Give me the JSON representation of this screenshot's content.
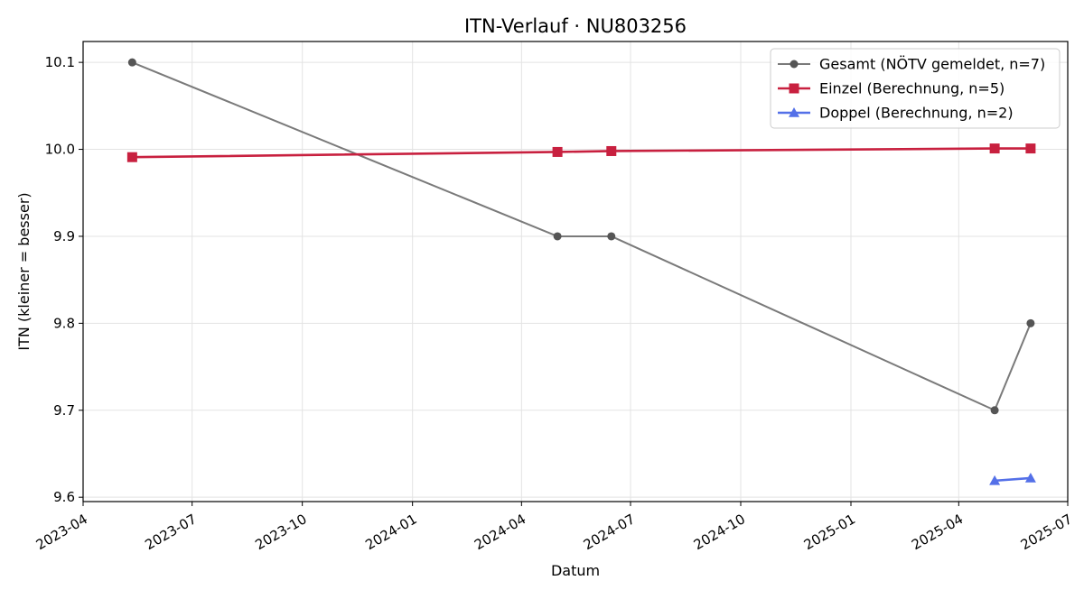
{
  "chart_data": {
    "type": "line",
    "title": "ITN-Verlauf · NU803256",
    "xlabel": "Datum",
    "ylabel": "ITN  (kleiner = besser)",
    "x_axis": {
      "type": "date",
      "range": [
        "2023-04-01",
        "2025-07-01"
      ],
      "ticks": [
        "2023-04-01",
        "2023-07-01",
        "2023-10-01",
        "2024-01-01",
        "2024-04-01",
        "2024-07-01",
        "2024-10-01",
        "2025-01-01",
        "2025-04-01",
        "2025-07-01"
      ],
      "tick_labels": [
        "2023-04",
        "2023-07",
        "2023-10",
        "2024-01",
        "2024-04",
        "2024-07",
        "2024-10",
        "2025-01",
        "2025-04",
        "2025-07"
      ]
    },
    "y_axis": {
      "range": [
        9.595,
        10.124
      ],
      "ticks": [
        9.6,
        9.7,
        9.8,
        9.9,
        10.0,
        10.1
      ],
      "tick_labels": [
        "9.6",
        "9.7",
        "9.8",
        "9.9",
        "10.0",
        "10.1"
      ]
    },
    "grid": true,
    "legend_position": "top-right",
    "series": [
      {
        "name": "Gesamt (NÖTV gemeldet, n=7)",
        "color": "#7a7a7a",
        "marker": "circle",
        "marker_color": "#555555",
        "points": [
          {
            "x": "2023-05-12",
            "y": 10.1
          },
          {
            "x": "2024-05-01",
            "y": 9.9
          },
          {
            "x": "2024-06-15",
            "y": 9.9
          },
          {
            "x": "2025-05-01",
            "y": 9.7
          },
          {
            "x": "2025-05-31",
            "y": 9.8
          }
        ]
      },
      {
        "name": "Einzel (Berechnung, n=5)",
        "color": "#c8203f",
        "marker": "square",
        "marker_color": "#c8203f",
        "points": [
          {
            "x": "2023-05-12",
            "y": 9.991
          },
          {
            "x": "2024-05-01",
            "y": 9.997
          },
          {
            "x": "2024-06-15",
            "y": 9.998
          },
          {
            "x": "2025-05-01",
            "y": 10.001
          },
          {
            "x": "2025-05-31",
            "y": 10.001
          }
        ]
      },
      {
        "name": "Doppel (Berechnung, n=2)",
        "color": "#5470e8",
        "marker": "triangle",
        "marker_color": "#5470e8",
        "points": [
          {
            "x": "2025-05-01",
            "y": 9.619
          },
          {
            "x": "2025-05-31",
            "y": 9.622
          }
        ]
      }
    ]
  }
}
